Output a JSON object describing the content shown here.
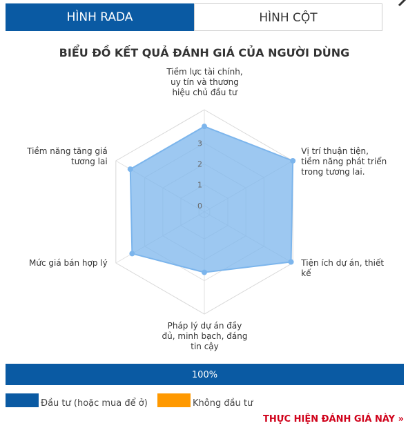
{
  "tabs": [
    "HÌNH RADA",
    "HÌNH CỘT"
  ],
  "chart_data": [
    {
      "type": "radar",
      "title": "BIỂU ĐỒ KẾT QUẢ ĐÁNH GIÁ CỦA NGƯỜI DÙNG",
      "categories": [
        "Tiềm lực tài chính, uy tín và thương hiệu chủ đầu tư",
        "Vị trí thuận tiện, tiềm năng phát triển trong tương lai.",
        "Tiện ích dự án, thiết kế",
        "Pháp lý dự án đầy đủ, minh bạch, đáng tin cậy",
        "Mức giá bán hợp lý",
        "Tiềm năng tăng giá tương lai"
      ],
      "series": [
        {
          "color": "#7cb5ec",
          "values": [
            3.8,
            4.6,
            4.5,
            2.6,
            3.7,
            3.8
          ]
        }
      ],
      "ylim": [
        -0.3,
        4.6
      ],
      "yticks": [
        0,
        1,
        2,
        3
      ],
      "grid": true
    },
    {
      "type": "bar",
      "orientation": "horizontal",
      "xlim": [
        0,
        100
      ],
      "series": [
        {
          "name": "Đầu tư (hoặc mua để ở)",
          "color": "#0a5aa3",
          "values": [
            100
          ],
          "value_labels": [
            "100%"
          ]
        },
        {
          "name": "Không đầu tư",
          "color": "#ff9900",
          "values": [
            0
          ]
        }
      ]
    }
  ],
  "link": "THỰC HIỆN ĐÁNH GIÁ NÀY »"
}
